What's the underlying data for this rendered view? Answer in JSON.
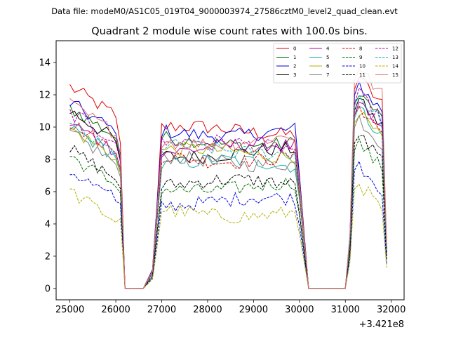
{
  "header": {
    "suptitle": "Data file: modeM0/AS1C05_019T04_9000003974_27586cztM0_level2_quad_clean.evt",
    "title": "Quadrant 2 module wise count rates with 100.0s bins."
  },
  "chart_data": {
    "type": "line",
    "x_offset_label": "+3.421e8",
    "xlim": [
      24700,
      32280
    ],
    "ylim": [
      -0.7,
      15.35
    ],
    "x_ticks": [
      25000,
      26000,
      27000,
      28000,
      29000,
      30000,
      31000,
      32000
    ],
    "y_ticks": [
      0,
      2,
      4,
      6,
      8,
      10,
      12,
      14
    ],
    "legend_position": "top-right",
    "segments": [
      {
        "start": 25000,
        "end": 26100,
        "step": 100
      },
      {
        "start": 26200,
        "end": 26600,
        "step": 100
      },
      {
        "start": 26800,
        "end": 30000,
        "step": 100
      },
      {
        "start": 30200,
        "end": 31100,
        "step": 100
      },
      {
        "start": 31200,
        "end": 31900,
        "step": 100
      }
    ],
    "series": [
      {
        "name": "0",
        "color": "#e00000",
        "dash": "solid",
        "levels": [
          12.5,
          9.8,
          13.0
        ]
      },
      {
        "name": "1",
        "color": "#007000",
        "dash": "solid",
        "levels": [
          11.2,
          9.1,
          12.1
        ]
      },
      {
        "name": "2",
        "color": "#0000e0",
        "dash": "solid",
        "levels": [
          11.5,
          9.7,
          12.6
        ]
      },
      {
        "name": "3",
        "color": "#000000",
        "dash": "solid",
        "levels": [
          11.0,
          8.4,
          11.6
        ]
      },
      {
        "name": "4",
        "color": "#b000b0",
        "dash": "solid",
        "levels": [
          10.3,
          8.7,
          11.3
        ]
      },
      {
        "name": "5",
        "color": "#20b0b0",
        "dash": "solid",
        "levels": [
          10.0,
          7.7,
          11.1
        ]
      },
      {
        "name": "6",
        "color": "#b0b000",
        "dash": "solid",
        "levels": [
          9.9,
          8.4,
          10.8
        ]
      },
      {
        "name": "7",
        "color": "#808080",
        "dash": "solid",
        "levels": [
          9.6,
          7.9,
          10.5
        ]
      },
      {
        "name": "8",
        "color": "#e00000",
        "dash": "dashed",
        "levels": [
          10.3,
          8.1,
          11.3
        ]
      },
      {
        "name": "9",
        "color": "#007000",
        "dash": "dashed",
        "levels": [
          8.2,
          6.3,
          9.0
        ]
      },
      {
        "name": "10",
        "color": "#0000e0",
        "dash": "dashed",
        "levels": [
          7.3,
          5.4,
          7.7
        ]
      },
      {
        "name": "11",
        "color": "#000000",
        "dash": "dashed",
        "levels": [
          8.6,
          6.5,
          9.5
        ]
      },
      {
        "name": "12",
        "color": "#b000b0",
        "dash": "dashed",
        "levels": [
          10.9,
          8.9,
          12.0
        ]
      },
      {
        "name": "13",
        "color": "#20b0b0",
        "dash": "dashed",
        "levels": [
          10.1,
          8.6,
          11.9
        ]
      },
      {
        "name": "14",
        "color": "#b0b000",
        "dash": "dashed",
        "levels": [
          6.0,
          4.7,
          6.5
        ]
      },
      {
        "name": "15",
        "color": "#e07070",
        "dash": "solid",
        "levels": [
          11.4,
          9.2,
          13.6
        ]
      }
    ]
  }
}
